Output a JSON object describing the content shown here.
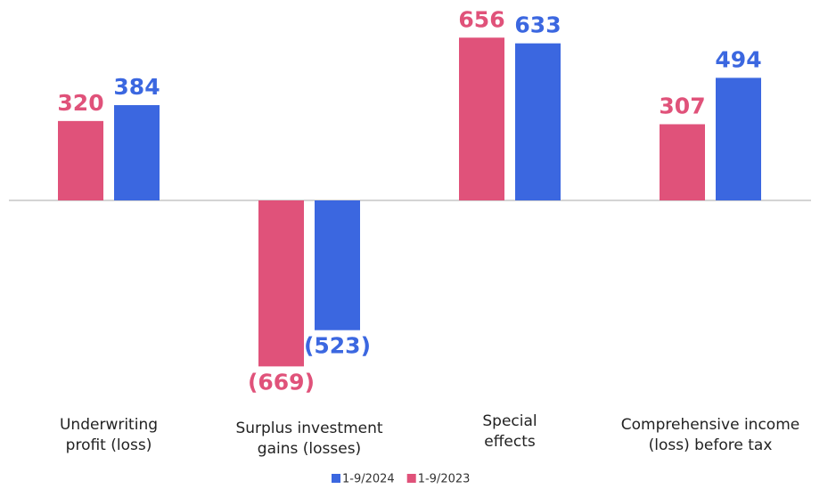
{
  "chart_data": {
    "type": "bar",
    "categories": [
      "Underwriting profit (loss)",
      "Surplus investment gains (losses)",
      "Special effects",
      "Comprehensive income (loss) before tax"
    ],
    "series": [
      {
        "name": "1-9/2023",
        "color": "#e0527a",
        "values": [
          320,
          -669,
          656,
          307
        ],
        "value_labels": [
          "320",
          "(669)",
          "656",
          "307"
        ]
      },
      {
        "name": "1-9/2024",
        "color": "#3b67e0",
        "values": [
          384,
          -523,
          633,
          494
        ],
        "value_labels": [
          "384",
          "(523)",
          "633",
          "494"
        ]
      }
    ],
    "ylim": [
      -700,
      700
    ]
  }
}
